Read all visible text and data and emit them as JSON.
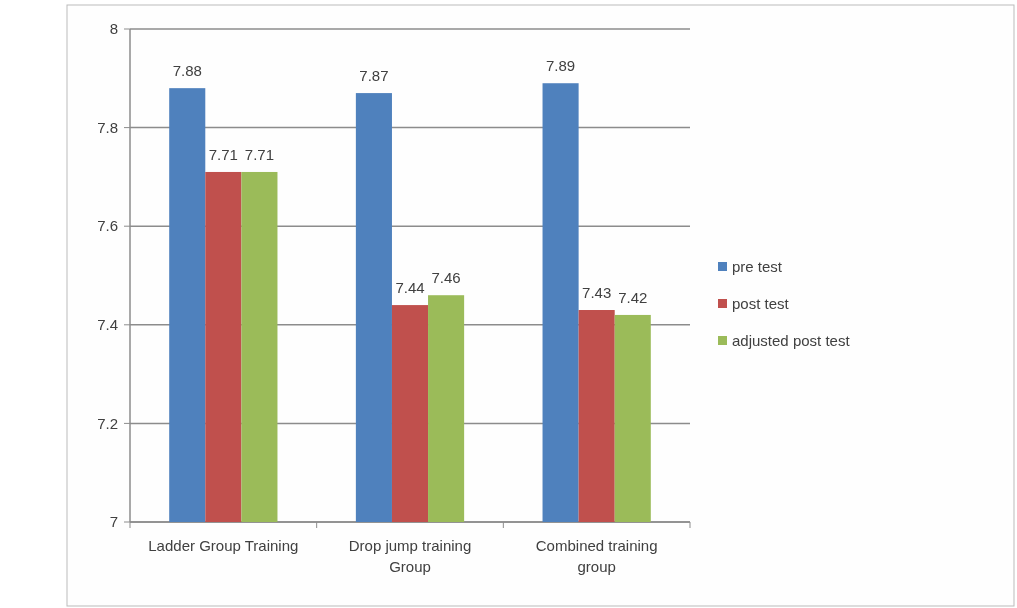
{
  "chart_data": {
    "type": "bar",
    "categories": [
      "Ladder Group Training",
      "Drop jump training Group",
      "Combined training group"
    ],
    "series": [
      {
        "name": "pre test",
        "color": "#4f81bd",
        "values": [
          7.88,
          7.87,
          7.89
        ]
      },
      {
        "name": "post test",
        "color": "#c0504d",
        "values": [
          7.71,
          7.44,
          7.43
        ]
      },
      {
        "name": "adjusted post test",
        "color": "#9bbb59",
        "values": [
          7.71,
          7.46,
          7.42
        ]
      }
    ],
    "ylim": [
      7,
      8
    ],
    "yticks": [
      7,
      7.2,
      7.4,
      7.6,
      7.8,
      8
    ],
    "grid": "y",
    "legend": "right",
    "data_labels": true
  }
}
